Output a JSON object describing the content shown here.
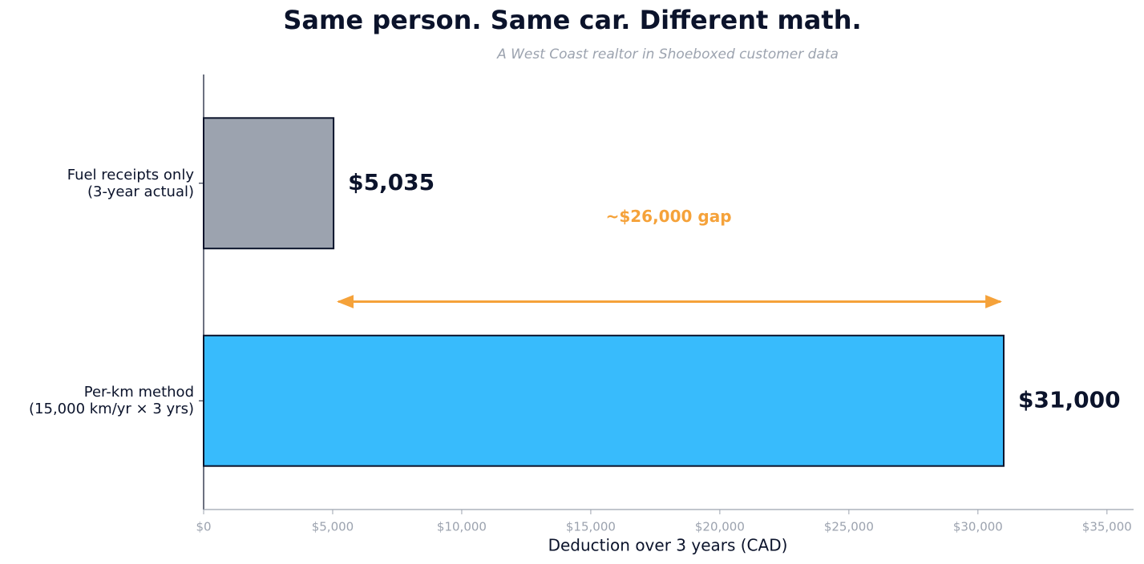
{
  "chart_data": {
    "type": "barh",
    "title": "Same person. Same car. Different math.",
    "subtitle": "A West Coast realtor in Shoeboxed customer data",
    "xlabel": "Deduction over 3 years (CAD)",
    "categories": [
      "Fuel receipts only\n(3-year actual)",
      "Per-km method\n(15,000 km/yr × 3 yrs)"
    ],
    "values": [
      5035,
      31000
    ],
    "value_labels": [
      "$5,035",
      "$31,000"
    ],
    "colors": [
      "#9ca3af",
      "#38bbfc"
    ],
    "edge_color": "#0b132b",
    "annotation": "~$26,000 gap",
    "annotation_color": "#f5a23a",
    "xlim": [
      0,
      36000
    ],
    "xticks": [
      {
        "value": 0,
        "label": "$0"
      },
      {
        "value": 5000,
        "label": "$5,000"
      },
      {
        "value": 10000,
        "label": "$10,000"
      },
      {
        "value": 15000,
        "label": "$15,000"
      },
      {
        "value": 20000,
        "label": "$20,000"
      },
      {
        "value": 25000,
        "label": "$25,000"
      },
      {
        "value": 30000,
        "label": "$30,000"
      },
      {
        "value": 35000,
        "label": "$35,000"
      }
    ]
  }
}
